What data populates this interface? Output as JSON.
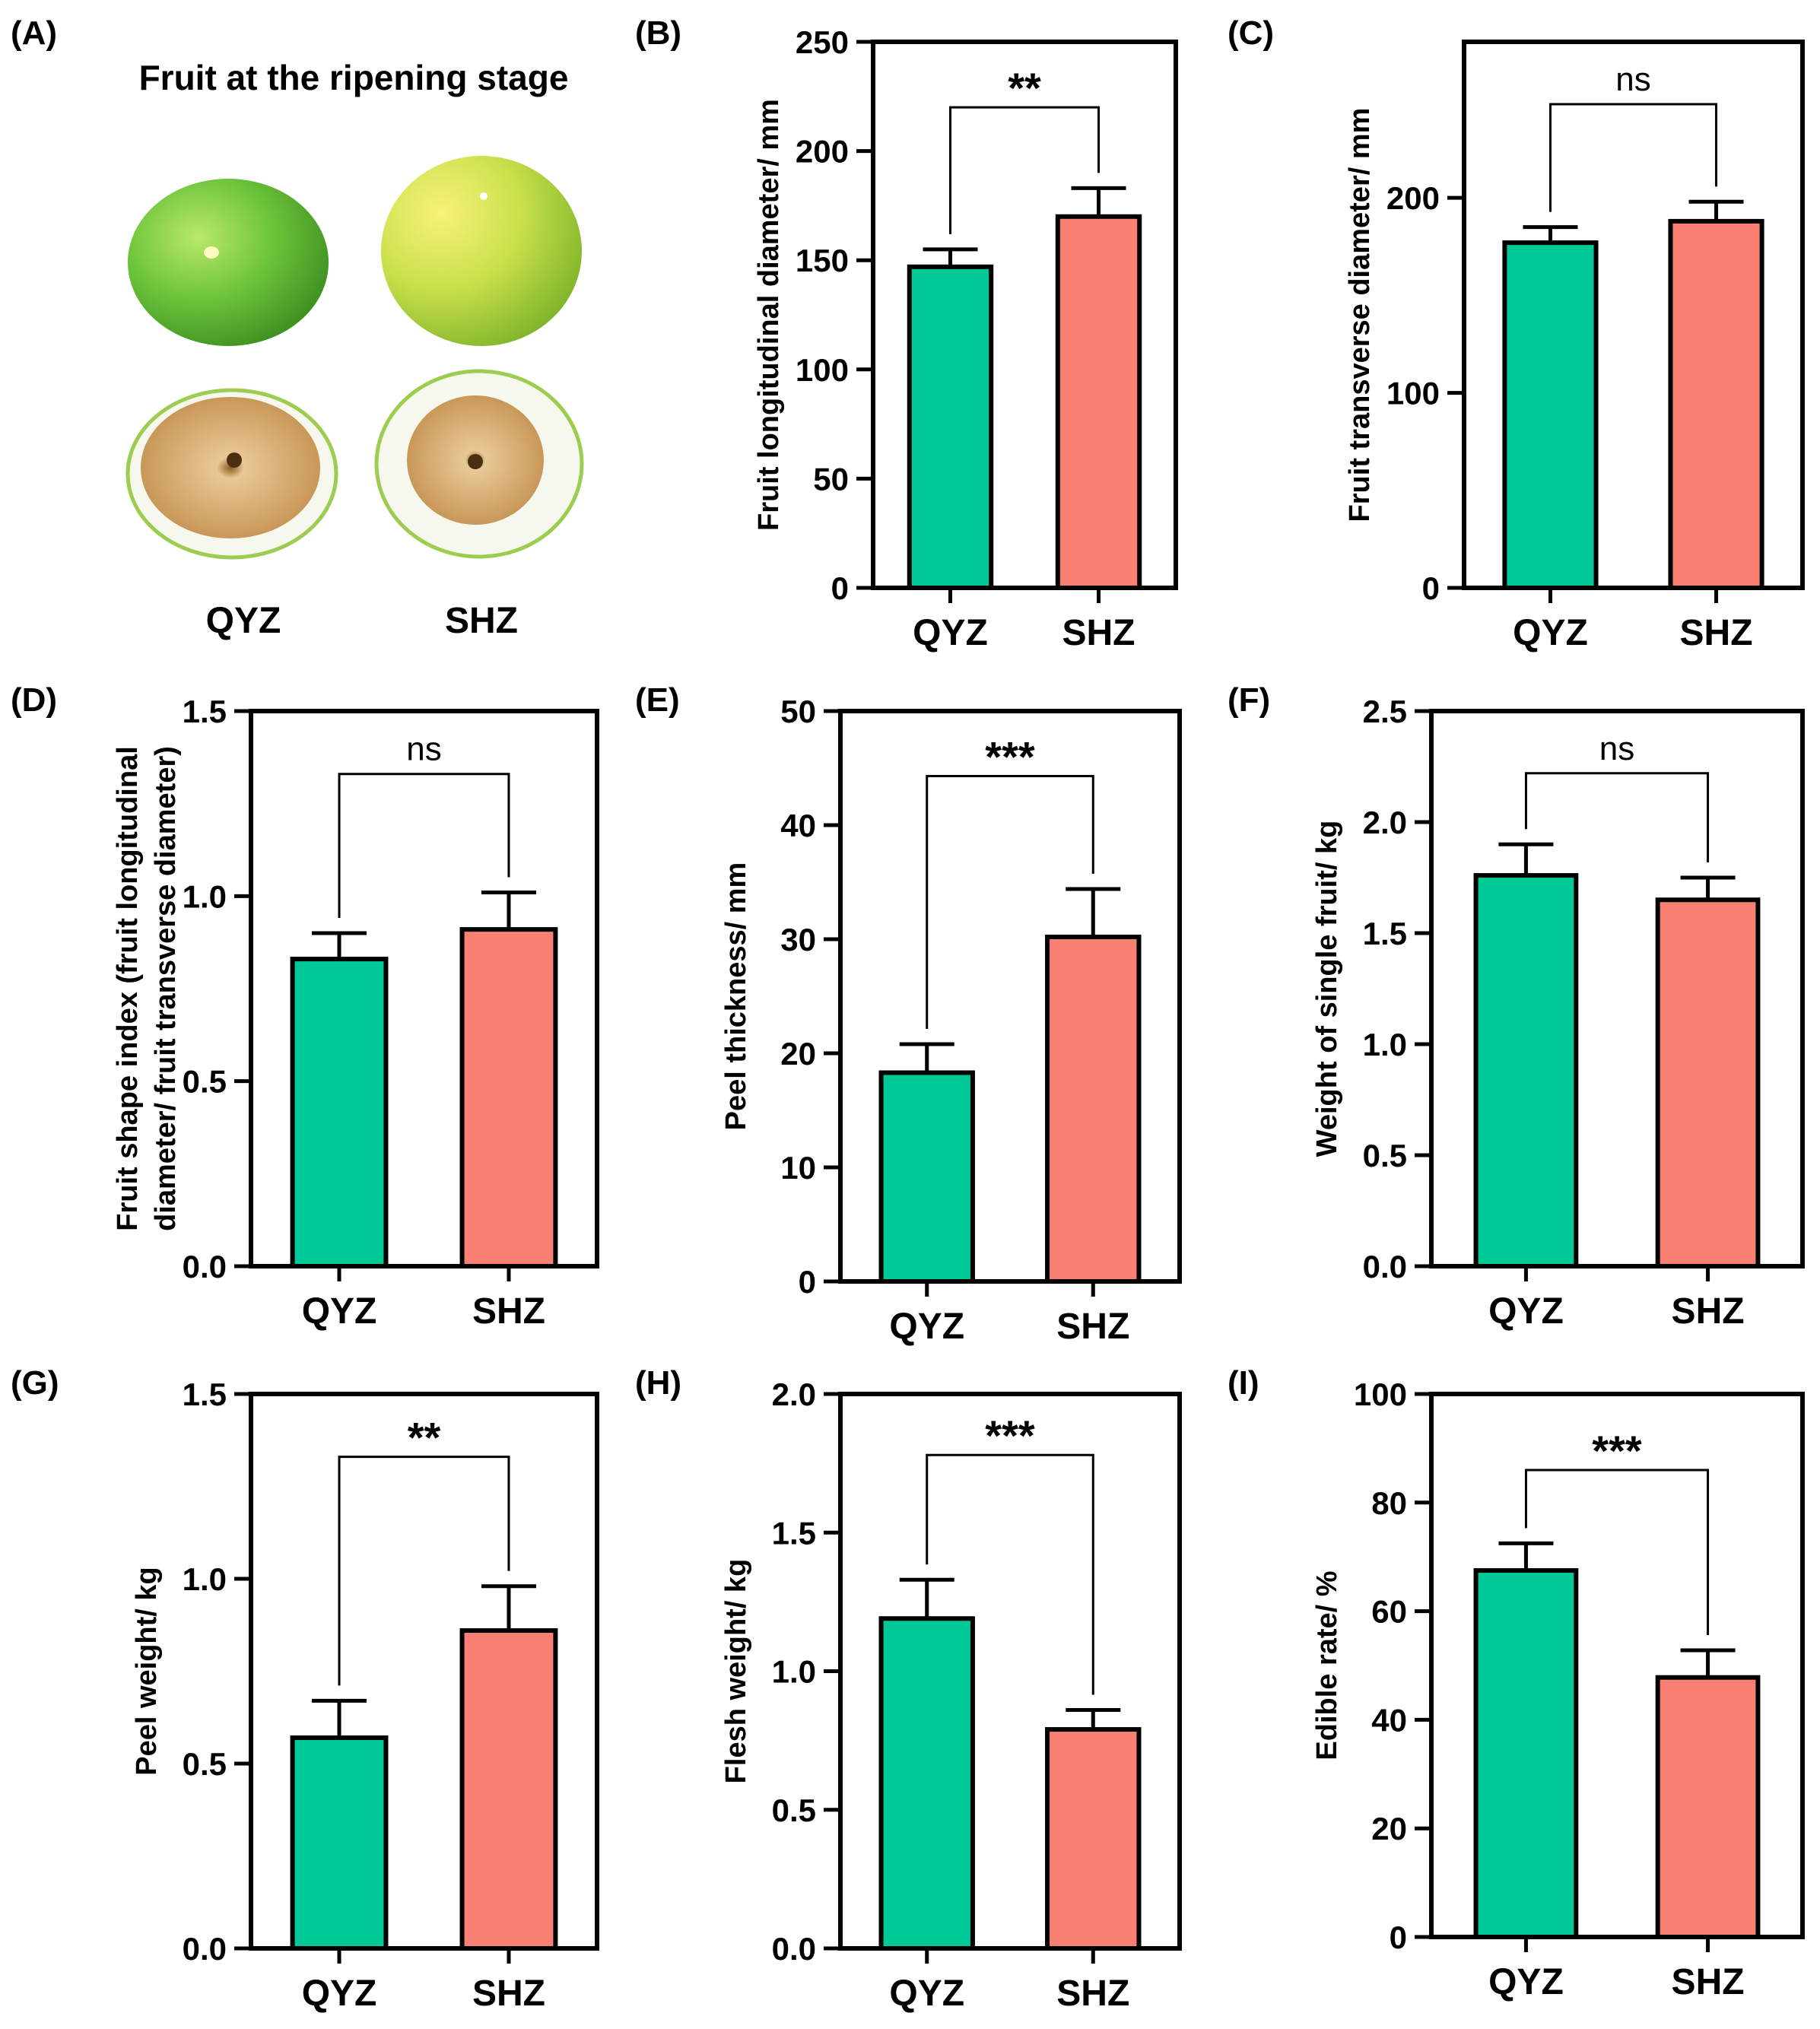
{
  "colors": {
    "qyz": "#00c896",
    "shz": "#fa8074",
    "stroke": "#000000",
    "fruit_green": "#6cc43a",
    "fruit_yellow": "#d6e84a",
    "pulp": "#d8b27a"
  },
  "panel_a": {
    "letter": "(A)",
    "title": "Fruit at the ripening stage",
    "labels": [
      "QYZ",
      "SHZ"
    ]
  },
  "chart_data": [
    {
      "letter": "(B)",
      "type": "bar",
      "categories": [
        "QYZ",
        "SHZ"
      ],
      "values": [
        147,
        170
      ],
      "errors": [
        8,
        13
      ],
      "ylabel": "Fruit longitudinal diameter/ mm",
      "ylim": [
        0,
        250
      ],
      "yticks": [
        "0",
        "50",
        "100",
        "150",
        "200",
        "250"
      ],
      "ytick_values": [
        0,
        50,
        100,
        150,
        200,
        250
      ],
      "significance": "**",
      "bracket_y": 220
    },
    {
      "letter": "(C)",
      "type": "bar",
      "categories": [
        "QYZ",
        "SHZ"
      ],
      "values": [
        177,
        188
      ],
      "errors": [
        8,
        10
      ],
      "ylabel": "Fruit transverse diameter/ mm",
      "ylim": [
        0,
        280
      ],
      "yticks": [
        "0",
        "100",
        "200"
      ],
      "ytick_values": [
        0,
        100,
        200
      ],
      "significance": "ns",
      "bracket_y": 248
    },
    {
      "letter": "(D)",
      "type": "bar",
      "categories": [
        "QYZ",
        "SHZ"
      ],
      "values": [
        0.83,
        0.91
      ],
      "errors": [
        0.07,
        0.1
      ],
      "ylabel_lines": [
        "Fruit shape index (fruit longitudinal",
        "diameter/ fruit transverse diameter)"
      ],
      "ylim": [
        0,
        1.5
      ],
      "yticks": [
        "0.0",
        "0.5",
        "1.0",
        "1.5"
      ],
      "ytick_values": [
        0,
        0.5,
        1.0,
        1.5
      ],
      "significance": "ns",
      "bracket_y": 1.33
    },
    {
      "letter": "(E)",
      "type": "bar",
      "categories": [
        "QYZ",
        "SHZ"
      ],
      "values": [
        18.3,
        30.2
      ],
      "errors": [
        2.5,
        4.2
      ],
      "ylabel": "Peel thickness/ mm",
      "ylim": [
        0,
        50
      ],
      "yticks": [
        "0",
        "10",
        "20",
        "30",
        "40",
        "50"
      ],
      "ytick_values": [
        0,
        10,
        20,
        30,
        40,
        50
      ],
      "significance": "***",
      "bracket_y": 44.3
    },
    {
      "letter": "(F)",
      "type": "bar",
      "categories": [
        "QYZ",
        "SHZ"
      ],
      "values": [
        1.76,
        1.65
      ],
      "errors": [
        0.14,
        0.1
      ],
      "ylabel": "Weight of single fruit/ kg",
      "ylim": [
        0,
        2.5
      ],
      "yticks": [
        "0.0",
        "0.5",
        "1.0",
        "1.5",
        "2.0",
        "2.5"
      ],
      "ytick_values": [
        0,
        0.5,
        1.0,
        1.5,
        2.0,
        2.5
      ],
      "significance": "ns",
      "bracket_y": 2.22
    },
    {
      "letter": "(G)",
      "type": "bar",
      "categories": [
        "QYZ",
        "SHZ"
      ],
      "values": [
        0.57,
        0.86
      ],
      "errors": [
        0.1,
        0.12
      ],
      "ylabel": "Peel weight/ kg",
      "ylim": [
        0,
        1.5
      ],
      "yticks": [
        "0.0",
        "0.5",
        "1.0",
        "1.5"
      ],
      "ytick_values": [
        0,
        0.5,
        1.0,
        1.5
      ],
      "significance": "**",
      "bracket_y": 1.33
    },
    {
      "letter": "(H)",
      "type": "bar",
      "categories": [
        "QYZ",
        "SHZ"
      ],
      "values": [
        1.19,
        0.79
      ],
      "errors": [
        0.14,
        0.07
      ],
      "ylabel": "Flesh weight/ kg",
      "ylim": [
        0,
        2.0
      ],
      "yticks": [
        "0.0",
        "0.5",
        "1.0",
        "1.5",
        "2.0"
      ],
      "ytick_values": [
        0,
        0.5,
        1.0,
        1.5,
        2.0
      ],
      "significance": "***",
      "bracket_y": 1.78
    },
    {
      "letter": "(I)",
      "type": "bar",
      "categories": [
        "QYZ",
        "SHZ"
      ],
      "values": [
        67.5,
        47.8
      ],
      "errors": [
        5.0,
        5.0
      ],
      "ylabel": "Edible rate/ %",
      "ylim": [
        0,
        100
      ],
      "yticks": [
        "0",
        "20",
        "40",
        "60",
        "80",
        "100"
      ],
      "ytick_values": [
        0,
        20,
        40,
        60,
        80,
        100
      ],
      "significance": "***",
      "bracket_y": 86
    }
  ]
}
